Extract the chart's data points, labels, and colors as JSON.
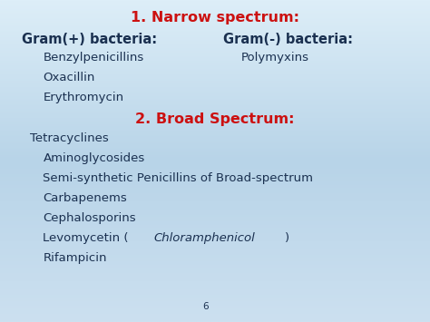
{
  "bg_top": "#ddeef8",
  "bg_mid": "#b8d4e8",
  "bg_bot": "#cce0f0",
  "dark_blue": "#1a3050",
  "red": "#cc1111",
  "title1": "1. Narrow spectrum:",
  "label_gram_pos": "Gram(+) bacteria:",
  "label_gram_neg": "Gram(-) bacteria:",
  "gram_pos_items": [
    "Benzylpenicillins",
    "Oxacillin",
    "Erythromycin"
  ],
  "gram_neg_items": [
    "Polymyxins"
  ],
  "title2": "2. Broad Spectrum:",
  "broad_items": [
    "Tetracyclines",
    "Aminoglycosides",
    "Semi-synthetic Penicillins of Broad-spectrum",
    "Carbapenems",
    "Cephalosporins",
    "Rifampicin"
  ],
  "levo_prefix": "Levomycetin (",
  "chloramphenicol_italic": "Chloramphenicol",
  "chloramphenicol_close": ")",
  "page_number": "6",
  "figsize": [
    4.74,
    3.55
  ],
  "dpi": 100,
  "fs_title": 11.5,
  "fs_header": 10.5,
  "fs_body": 9.5,
  "fs_page": 7.5
}
